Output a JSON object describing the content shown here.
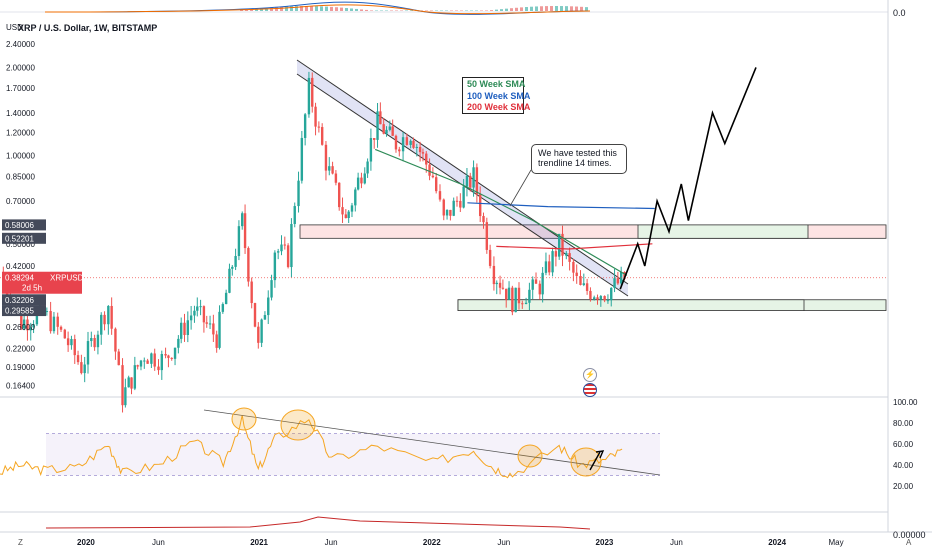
{
  "chart_data": [
    {
      "type": "candlestick",
      "title": "XRP / U.S. Dollar, 1W, BITSTAMP",
      "currency": "USD",
      "y_scale": "log",
      "ylim": [
        0.15,
        2.6
      ],
      "y_ticks": [
        "2.40000",
        "2.00000",
        "1.70000",
        "1.40000",
        "1.20000",
        "1.00000",
        "0.85000",
        "0.70000",
        "0.58006",
        "0.52201",
        "0.50000",
        "0.42000",
        "0.38294",
        "0.32206",
        "0.29585",
        "0.26000",
        "0.22000",
        "0.19000",
        "0.16400"
      ],
      "x_ticks": [
        "2020",
        "Jun",
        "2021",
        "Jun",
        "2022",
        "Jun",
        "2023",
        "Jun",
        "2024",
        "May"
      ],
      "price_tag": {
        "value": "0.38294",
        "symbol": "XRPUSD",
        "countdown": "2d 5h"
      },
      "level_tags": [
        "0.58006",
        "0.52201",
        "0.32206",
        "0.29585"
      ],
      "close_series": [
        [
          "2019-07-01",
          0.4
        ],
        [
          "2019-08-15",
          0.27
        ],
        [
          "2019-10-01",
          0.29
        ],
        [
          "2019-11-15",
          0.24
        ],
        [
          "2019-12-20",
          0.19
        ],
        [
          "2020-02-15",
          0.31
        ],
        [
          "2020-03-16",
          0.15
        ],
        [
          "2020-05-01",
          0.21
        ],
        [
          "2020-06-15",
          0.2
        ],
        [
          "2020-08-15",
          0.3
        ],
        [
          "2020-10-01",
          0.24
        ],
        [
          "2020-11-24",
          0.6
        ],
        [
          "2020-12-28",
          0.22
        ],
        [
          "2021-02-01",
          0.48
        ],
        [
          "2021-03-01",
          0.45
        ],
        [
          "2021-04-14",
          1.7
        ],
        [
          "2021-05-20",
          0.95
        ],
        [
          "2021-07-01",
          0.6
        ],
        [
          "2021-09-06",
          1.3
        ],
        [
          "2021-10-15",
          1.1
        ],
        [
          "2021-11-15",
          1.2
        ],
        [
          "2022-01-01",
          0.85
        ],
        [
          "2022-01-24",
          0.6
        ],
        [
          "2022-03-28",
          0.85
        ],
        [
          "2022-05-10",
          0.4
        ],
        [
          "2022-06-18",
          0.32
        ],
        [
          "2022-08-15",
          0.36
        ],
        [
          "2022-09-25",
          0.5
        ],
        [
          "2022-11-09",
          0.35
        ],
        [
          "2022-12-30",
          0.34
        ],
        [
          "2023-02-10",
          0.38
        ]
      ],
      "sma": [
        {
          "name": "50 Week SMA",
          "color": "#2e8b57",
          "points": [
            [
              "2021-09-01",
              1.05
            ],
            [
              "2022-03-01",
              0.8
            ],
            [
              "2022-08-01",
              0.6
            ],
            [
              "2023-02-15",
              0.39
            ]
          ]
        },
        {
          "name": "100 Week SMA",
          "color": "#1f5fbf",
          "points": [
            [
              "2022-03-15",
              0.69
            ],
            [
              "2022-09-01",
              0.67
            ],
            [
              "2023-04-15",
              0.66
            ]
          ]
        },
        {
          "name": "200 Week SMA",
          "color": "#e0303b",
          "points": [
            [
              "2022-05-15",
              0.49
            ],
            [
              "2022-10-15",
              0.48
            ],
            [
              "2023-04-10",
              0.5
            ]
          ]
        }
      ],
      "projection": [
        [
          "2023-02-01",
          0.35
        ],
        [
          "2023-03-10",
          0.5
        ],
        [
          "2023-03-25",
          0.42
        ],
        [
          "2023-04-20",
          0.7
        ],
        [
          "2023-05-15",
          0.55
        ],
        [
          "2023-06-10",
          0.8
        ],
        [
          "2023-06-25",
          0.6
        ],
        [
          "2023-08-15",
          1.4
        ],
        [
          "2023-09-10",
          1.1
        ],
        [
          "2023-11-15",
          2.0
        ]
      ],
      "annotation": "We have tested this trendline 14 times."
    },
    {
      "type": "line",
      "name": "RSI",
      "ylim": [
        0,
        100
      ],
      "y_ticks": [
        "100.00",
        "80.00",
        "60.00",
        "40.00",
        "20.00"
      ],
      "bands": [
        30,
        70
      ],
      "points": [
        [
          "2019-07-01",
          33
        ],
        [
          "2019-08-15",
          40
        ],
        [
          "2019-10-01",
          35
        ],
        [
          "2019-12-15",
          38
        ],
        [
          "2020-02-15",
          60
        ],
        [
          "2020-03-16",
          32
        ],
        [
          "2020-06-01",
          40
        ],
        [
          "2020-08-15",
          62
        ],
        [
          "2020-10-15",
          42
        ],
        [
          "2020-11-24",
          83
        ],
        [
          "2020-12-28",
          35
        ],
        [
          "2021-02-01",
          65
        ],
        [
          "2021-04-14",
          85
        ],
        [
          "2021-06-01",
          45
        ],
        [
          "2021-09-06",
          58
        ],
        [
          "2022-01-01",
          42
        ],
        [
          "2022-03-28",
          55
        ],
        [
          "2022-05-10",
          37
        ],
        [
          "2022-06-18",
          31
        ],
        [
          "2022-09-25",
          58
        ],
        [
          "2022-11-09",
          40
        ],
        [
          "2023-01-01",
          45
        ],
        [
          "2023-02-10",
          55
        ]
      ]
    }
  ],
  "legend_labels": [
    "50 Week SMA",
    "100 Week SMA",
    "200 Week SMA"
  ],
  "callout_text": "We have tested this trendline 14 times.",
  "title": "XRP / U.S. Dollar, 1W, BITSTAMP",
  "currency": "USD",
  "top_value": "0.0",
  "bottom_value": "0.00000",
  "footer_left": "Z",
  "footer_right": "A",
  "colors": {
    "up": "#26a69a",
    "down": "#ef5350",
    "rsi": "#f5a623",
    "trend": "#5b63c9"
  }
}
